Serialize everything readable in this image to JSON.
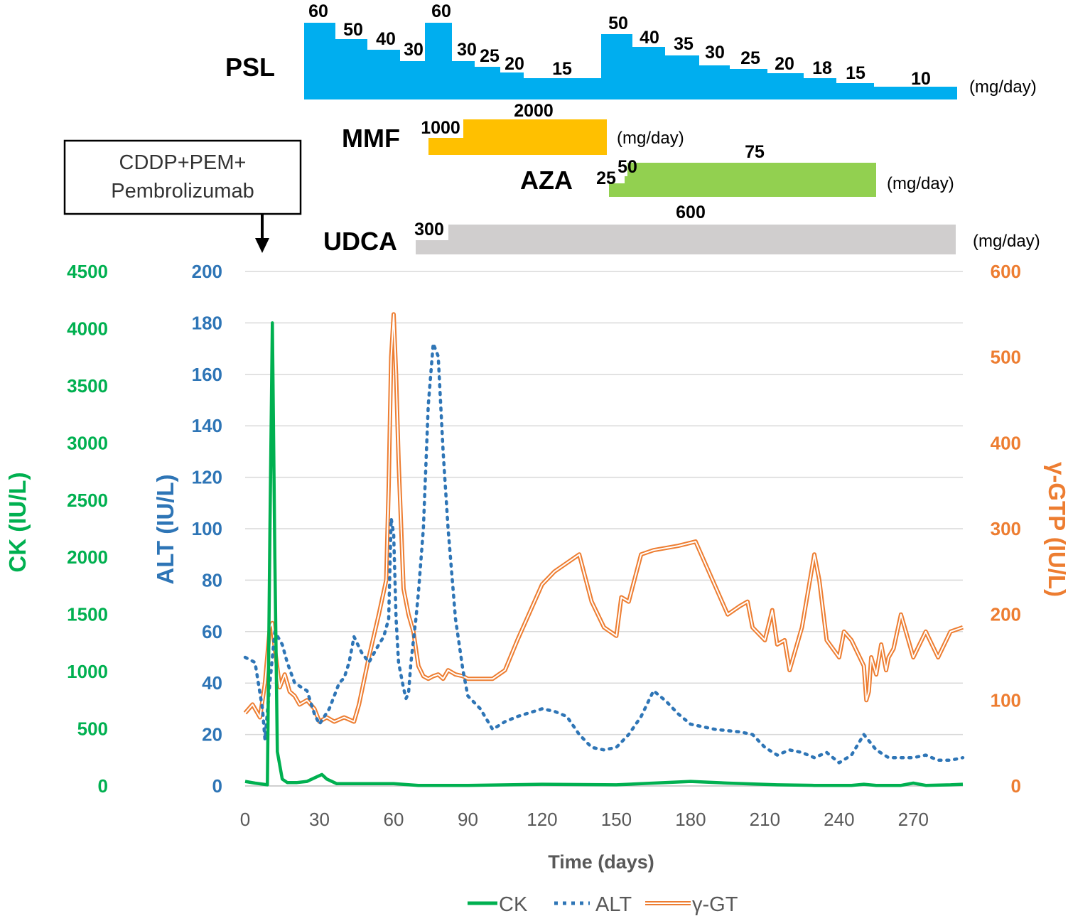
{
  "annotation": {
    "line1": "CDDP+PEM+",
    "line2": "Pembrolizumab"
  },
  "drug_unit": "(mg/day)",
  "colors": {
    "psl": "#00aeef",
    "mmf": "#ffc000",
    "aza": "#92d050",
    "udca": "#d0cece",
    "ck": "#00b050",
    "alt": "#2e75b6",
    "ggt": "#ed7d31"
  },
  "chart_data": {
    "type": "line",
    "xlabel": "Time (days)",
    "x_ticks": [
      "0",
      "30",
      "60",
      "90",
      "120",
      "150",
      "180",
      "210",
      "240",
      "270"
    ],
    "xlim": [
      0,
      290
    ],
    "axes": {
      "ck": {
        "label": "CK (IU/L)",
        "ticks": [
          "0",
          "500",
          "1000",
          "1500",
          "2000",
          "2500",
          "3000",
          "3500",
          "4000",
          "4500"
        ],
        "range": [
          0,
          4500
        ]
      },
      "alt": {
        "label": "ALT (IU/L)",
        "ticks": [
          "0",
          "20",
          "40",
          "60",
          "80",
          "100",
          "120",
          "140",
          "160",
          "180",
          "200"
        ],
        "range": [
          0,
          200
        ]
      },
      "ggt": {
        "label": "γ-GTP (IU/L)",
        "ticks": [
          "0",
          "100",
          "200",
          "300",
          "400",
          "500",
          "600"
        ],
        "range": [
          0,
          600
        ]
      }
    },
    "legend": [
      "CK",
      "ALT",
      "γ-GT"
    ],
    "legend_position": "bottom",
    "series": [
      {
        "name": "CK",
        "axis": "ck",
        "x": [
          0,
          4,
          9,
          10,
          11,
          12,
          13,
          15,
          17,
          21,
          25,
          29,
          31,
          33,
          37,
          45,
          60,
          70,
          90,
          120,
          150,
          165,
          180,
          195,
          215,
          230,
          245,
          250,
          255,
          265,
          270,
          275,
          285,
          290
        ],
        "y": [
          40,
          25,
          10,
          2200,
          4050,
          2000,
          300,
          60,
          30,
          30,
          40,
          80,
          100,
          60,
          20,
          20,
          20,
          5,
          5,
          15,
          10,
          25,
          40,
          25,
          10,
          5,
          5,
          15,
          5,
          5,
          25,
          5,
          10,
          15
        ]
      },
      {
        "name": "ALT",
        "axis": "alt",
        "x": [
          0,
          4,
          7,
          8,
          10,
          12,
          15,
          17,
          20,
          25,
          28,
          30,
          32,
          34,
          36,
          38,
          40,
          42,
          44,
          47,
          50,
          54,
          56,
          58,
          59,
          60,
          61,
          62,
          64,
          65,
          66,
          67,
          69,
          70,
          72,
          74,
          76,
          78,
          80,
          82,
          85,
          88,
          90,
          95,
          100,
          105,
          110,
          120,
          125,
          130,
          135,
          140,
          145,
          150,
          155,
          160,
          165,
          170,
          175,
          180,
          190,
          200,
          205,
          210,
          215,
          220,
          225,
          230,
          235,
          240,
          245,
          250,
          255,
          260,
          265,
          270,
          275,
          280,
          285,
          290
        ],
        "y": [
          50,
          48,
          30,
          18,
          40,
          60,
          55,
          48,
          40,
          37,
          28,
          24,
          27,
          30,
          35,
          40,
          42,
          48,
          58,
          52,
          48,
          55,
          58,
          65,
          104,
          98,
          65,
          48,
          38,
          34,
          36,
          48,
          65,
          75,
          100,
          148,
          172,
          167,
          130,
          100,
          65,
          45,
          35,
          30,
          22,
          25,
          27,
          30,
          29,
          27,
          20,
          15,
          14,
          15,
          20,
          27,
          37,
          33,
          28,
          24,
          22,
          21,
          20,
          15,
          12,
          14,
          13,
          11,
          13,
          9,
          12,
          20,
          14,
          11,
          11,
          11,
          12,
          10,
          10,
          11
        ]
      },
      {
        "name": "γ-GT",
        "axis": "ggt",
        "x": [
          0,
          3,
          6,
          8,
          10,
          11,
          12,
          14,
          16,
          18,
          20,
          22,
          25,
          28,
          30,
          33,
          36,
          40,
          44,
          46,
          50,
          54,
          57,
          58,
          59,
          60,
          61,
          62,
          64,
          66,
          68,
          70,
          72,
          74,
          76,
          78,
          80,
          82,
          85,
          88,
          90,
          95,
          100,
          105,
          110,
          120,
          125,
          135,
          140,
          145,
          150,
          152,
          155,
          160,
          165,
          175,
          182,
          195,
          200,
          203,
          205,
          210,
          213,
          215,
          218,
          220,
          225,
          230,
          232,
          235,
          240,
          242,
          245,
          250,
          251,
          252,
          253,
          255,
          257,
          259,
          260,
          262,
          265,
          270,
          275,
          280,
          285,
          290
        ],
        "y": [
          85,
          95,
          80,
          120,
          185,
          190,
          160,
          115,
          130,
          110,
          105,
          95,
          100,
          90,
          75,
          80,
          75,
          80,
          75,
          95,
          150,
          200,
          240,
          350,
          500,
          550,
          480,
          380,
          230,
          200,
          180,
          140,
          128,
          125,
          128,
          130,
          125,
          135,
          130,
          128,
          125,
          125,
          125,
          135,
          170,
          235,
          250,
          270,
          215,
          185,
          175,
          220,
          215,
          270,
          275,
          280,
          285,
          200,
          210,
          215,
          185,
          170,
          205,
          165,
          170,
          135,
          185,
          270,
          240,
          170,
          150,
          180,
          170,
          140,
          100,
          110,
          150,
          130,
          165,
          135,
          150,
          160,
          200,
          150,
          180,
          150,
          180,
          185
        ]
      }
    ]
  },
  "drugs": {
    "psl": {
      "name": "PSL",
      "levels": [
        60,
        50,
        40,
        30,
        60,
        30,
        25,
        20,
        15,
        50,
        40,
        35,
        30,
        25,
        20,
        18,
        15,
        10
      ],
      "labels": [
        "60",
        "50",
        "40",
        "30",
        "60",
        "30",
        "25",
        "20",
        "15",
        "50",
        "40",
        "35",
        "30",
        "25",
        "20",
        "18",
        "15",
        "10"
      ]
    },
    "mmf": {
      "name": "MMF",
      "levels": [
        1000,
        2000
      ],
      "labels": [
        "1000",
        "2000"
      ]
    },
    "aza": {
      "name": "AZA",
      "levels": [
        25,
        50,
        75
      ],
      "labels": [
        "25",
        "50",
        "75"
      ]
    },
    "udca": {
      "name": "UDCA",
      "levels": [
        300,
        600
      ],
      "labels": [
        "300",
        "600"
      ]
    }
  }
}
